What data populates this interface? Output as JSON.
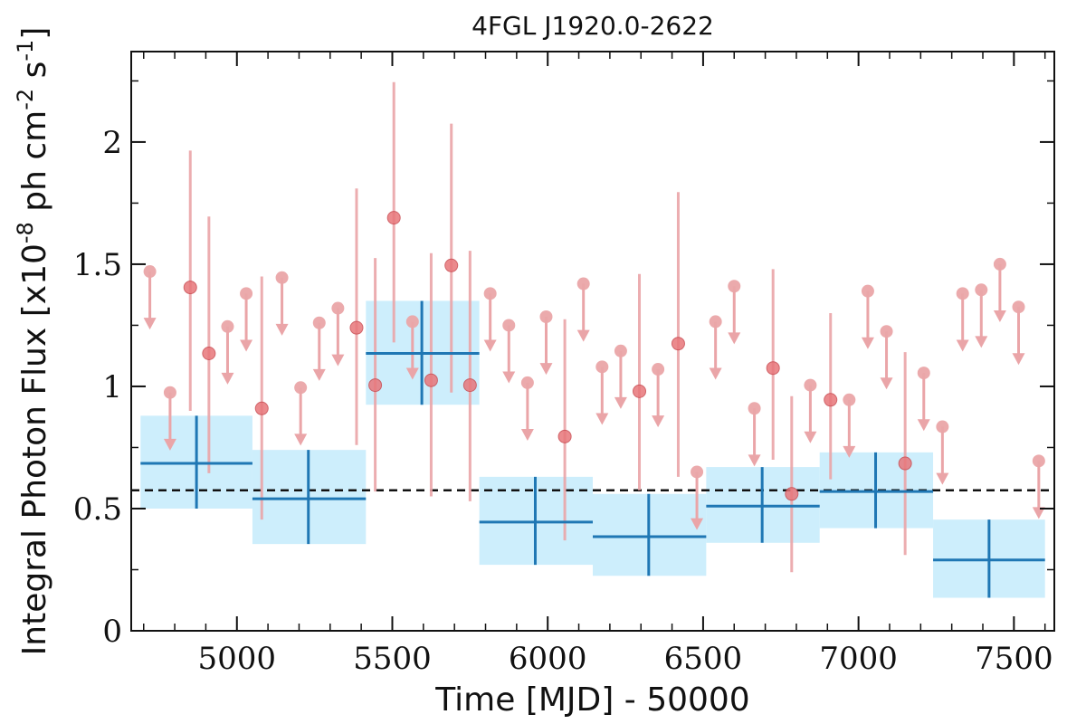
{
  "chart_data": {
    "type": "scatter",
    "title": "4FGL J1920.0-2622",
    "xlabel": "Time [MJD] - 50000",
    "ylabel": "Integral Photon Flux [x10^-8 ph cm^-2 s^-1]",
    "xlim": [
      4660,
      7630
    ],
    "ylim": [
      0,
      2.37
    ],
    "x_ticks": [
      5000,
      5500,
      6000,
      6500,
      7000,
      7500
    ],
    "x_tick_labels": [
      "5000",
      "5500",
      "6000",
      "6500",
      "7000",
      "7500"
    ],
    "y_ticks": [
      0,
      0.5,
      1,
      1.5,
      2
    ],
    "y_tick_labels": [
      "0",
      "0.5",
      "1",
      "1.5",
      "2"
    ],
    "grid": false,
    "colors": {
      "blue_line": "#1f77b4",
      "blue_band": "#cdeefc",
      "red_point": "#e8767a",
      "red_error": "#eaa5a8",
      "mean_line": "#111111"
    },
    "mean_flux": 0.575,
    "yearly_bins": [
      {
        "x": 4870,
        "x_lo": 4690,
        "x_hi": 5050,
        "y": 0.685,
        "y_lo": 0.5,
        "y_hi": 0.88
      },
      {
        "x": 5230,
        "x_lo": 5050,
        "x_hi": 5415,
        "y": 0.54,
        "y_lo": 0.355,
        "y_hi": 0.74
      },
      {
        "x": 5595,
        "x_lo": 5415,
        "x_hi": 5780,
        "y": 1.135,
        "y_lo": 0.925,
        "y_hi": 1.35
      },
      {
        "x": 5960,
        "x_lo": 5780,
        "x_hi": 6145,
        "y": 0.445,
        "y_lo": 0.27,
        "y_hi": 0.63
      },
      {
        "x": 6325,
        "x_lo": 6145,
        "x_hi": 6510,
        "y": 0.385,
        "y_lo": 0.225,
        "y_hi": 0.56
      },
      {
        "x": 6690,
        "x_lo": 6510,
        "x_hi": 6875,
        "y": 0.51,
        "y_lo": 0.36,
        "y_hi": 0.67
      },
      {
        "x": 7055,
        "x_lo": 6875,
        "x_hi": 7240,
        "y": 0.57,
        "y_lo": 0.42,
        "y_hi": 0.73
      },
      {
        "x": 7420,
        "x_lo": 7240,
        "x_hi": 7600,
        "y": 0.29,
        "y_lo": 0.135,
        "y_hi": 0.455
      }
    ],
    "monthly_detections": [
      {
        "x": 4850,
        "y": 1.405,
        "y_lo": 0.9,
        "y_hi": 1.965
      },
      {
        "x": 4910,
        "y": 1.135,
        "y_lo": 0.645,
        "y_hi": 1.695
      },
      {
        "x": 5080,
        "y": 0.91,
        "y_lo": 0.455,
        "y_hi": 1.45
      },
      {
        "x": 5385,
        "y": 1.24,
        "y_lo": 0.76,
        "y_hi": 1.81
      },
      {
        "x": 5445,
        "y": 1.005,
        "y_lo": 0.57,
        "y_hi": 1.525
      },
      {
        "x": 5505,
        "y": 1.69,
        "y_lo": 1.18,
        "y_hi": 2.245
      },
      {
        "x": 5625,
        "y": 1.025,
        "y_lo": 0.55,
        "y_hi": 1.545
      },
      {
        "x": 5690,
        "y": 1.495,
        "y_lo": 0.975,
        "y_hi": 2.075
      },
      {
        "x": 5750,
        "y": 1.005,
        "y_lo": 0.53,
        "y_hi": 1.555
      },
      {
        "x": 6055,
        "y": 0.795,
        "y_lo": 0.37,
        "y_hi": 1.275
      },
      {
        "x": 6295,
        "y": 0.98,
        "y_lo": 0.575,
        "y_hi": 1.46
      },
      {
        "x": 6420,
        "y": 1.175,
        "y_lo": 0.63,
        "y_hi": 1.795
      },
      {
        "x": 6725,
        "y": 1.075,
        "y_lo": 0.7,
        "y_hi": 1.48
      },
      {
        "x": 6785,
        "y": 0.56,
        "y_lo": 0.24,
        "y_hi": 0.96
      },
      {
        "x": 6910,
        "y": 0.945,
        "y_lo": 0.62,
        "y_hi": 1.3
      },
      {
        "x": 7150,
        "y": 0.685,
        "y_lo": 0.31,
        "y_hi": 1.14
      }
    ],
    "monthly_upper_limits": [
      {
        "x": 4720,
        "y": 1.47
      },
      {
        "x": 4785,
        "y": 0.975
      },
      {
        "x": 4970,
        "y": 1.245
      },
      {
        "x": 5030,
        "y": 1.38
      },
      {
        "x": 5145,
        "y": 1.445
      },
      {
        "x": 5205,
        "y": 0.995
      },
      {
        "x": 5265,
        "y": 1.26
      },
      {
        "x": 5325,
        "y": 1.32
      },
      {
        "x": 5565,
        "y": 1.265
      },
      {
        "x": 5815,
        "y": 1.38
      },
      {
        "x": 5875,
        "y": 1.25
      },
      {
        "x": 5935,
        "y": 1.015
      },
      {
        "x": 5995,
        "y": 1.285
      },
      {
        "x": 6115,
        "y": 1.42
      },
      {
        "x": 6175,
        "y": 1.08
      },
      {
        "x": 6235,
        "y": 1.145
      },
      {
        "x": 6355,
        "y": 1.07
      },
      {
        "x": 6480,
        "y": 0.65
      },
      {
        "x": 6540,
        "y": 1.265
      },
      {
        "x": 6600,
        "y": 1.41
      },
      {
        "x": 6665,
        "y": 0.91
      },
      {
        "x": 6845,
        "y": 1.005
      },
      {
        "x": 6970,
        "y": 0.945
      },
      {
        "x": 7030,
        "y": 1.39
      },
      {
        "x": 7090,
        "y": 1.225
      },
      {
        "x": 7210,
        "y": 1.055
      },
      {
        "x": 7270,
        "y": 0.835
      },
      {
        "x": 7335,
        "y": 1.38
      },
      {
        "x": 7395,
        "y": 1.395
      },
      {
        "x": 7455,
        "y": 1.5
      },
      {
        "x": 7515,
        "y": 1.325
      },
      {
        "x": 7580,
        "y": 0.695
      }
    ]
  }
}
